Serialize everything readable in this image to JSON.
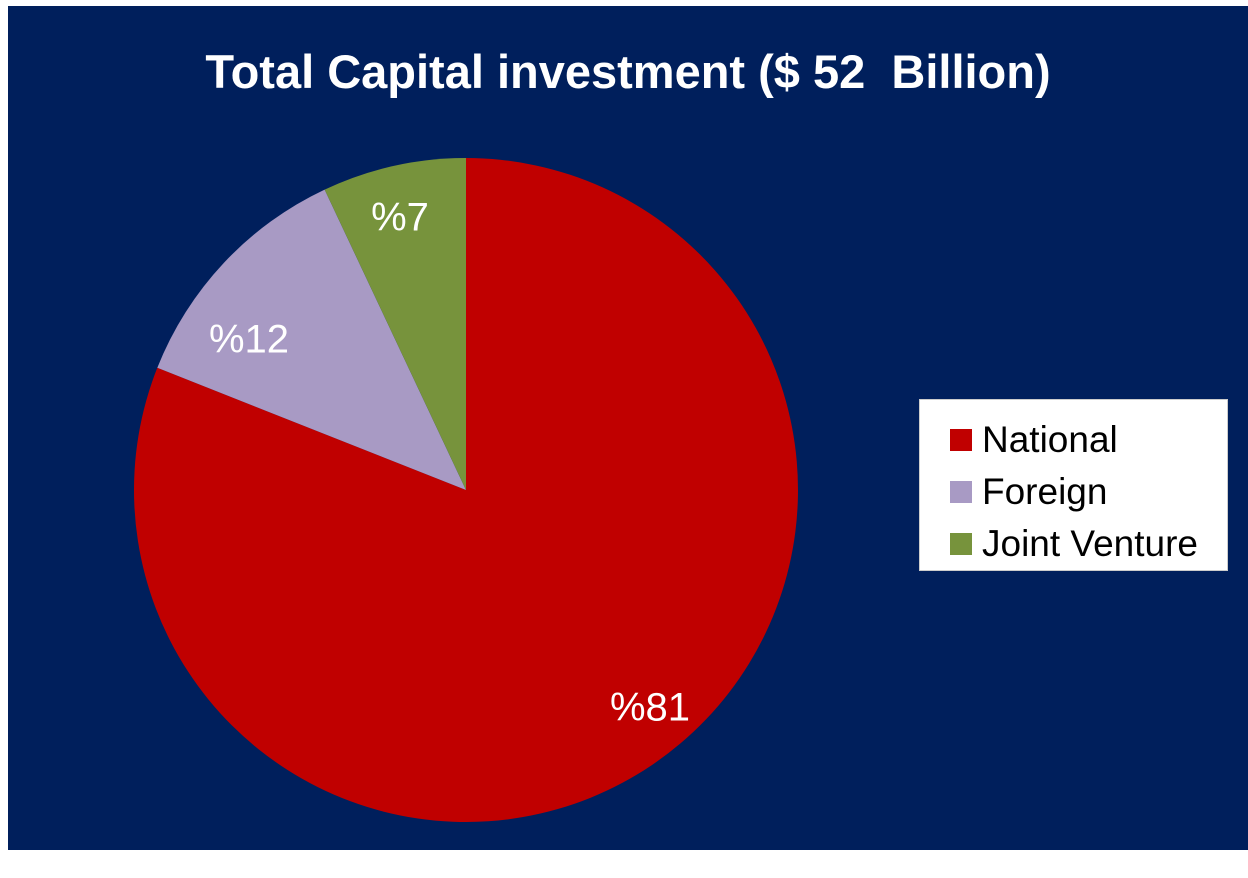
{
  "chart_data": {
    "type": "pie",
    "title": "Total Capital investment ($ 52  Billion)",
    "background_color": "#001f5c",
    "slices": [
      {
        "name": "National",
        "value": 81,
        "label": "%81",
        "color": "#c00000"
      },
      {
        "name": "Foreign",
        "value": 12,
        "label": "%12",
        "color": "#a89ac4"
      },
      {
        "name": "Joint Venture",
        "value": 7,
        "label": "%7",
        "color": "#77933c"
      }
    ],
    "legend_position": "right"
  }
}
